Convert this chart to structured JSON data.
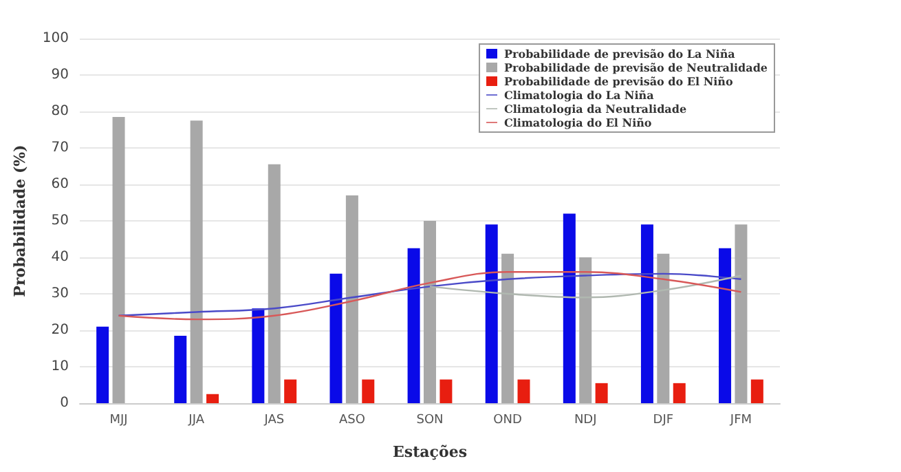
{
  "chart_data": {
    "type": "bar",
    "xlabel": "Estações",
    "ylabel": "Probabilidade (%)",
    "categories": [
      "MJJ",
      "JJA",
      "JAS",
      "ASO",
      "SON",
      "OND",
      "NDJ",
      "DJF",
      "JFM"
    ],
    "series": [
      {
        "name": "Probabilidade de previsão do La Niña",
        "color": "#0a0ae8",
        "values": [
          21,
          18.5,
          26,
          35.5,
          42.5,
          49,
          52,
          49,
          42.5
        ]
      },
      {
        "name": "Probabilidade de previsão de Neutralidade",
        "color": "#a8a8a8",
        "values": [
          78.5,
          77.5,
          65.5,
          57,
          50,
          41,
          40,
          41,
          49
        ]
      },
      {
        "name": "Probabilidade de previsão do El Niño",
        "color": "#e81e10",
        "values": [
          0,
          2.5,
          6.5,
          6.5,
          6.5,
          6.5,
          5.5,
          5.5,
          6.5
        ]
      },
      {
        "name": "Climatologia do La Niña",
        "type": "line",
        "color": "#4a4ac8",
        "values": [
          24,
          25,
          26,
          29,
          32,
          34,
          35,
          35.5,
          34
        ]
      },
      {
        "name": "Climatologia da Neutralidade",
        "type": "line",
        "color": "#b0b8b0",
        "values": [
          null,
          null,
          null,
          null,
          32,
          30,
          29,
          31,
          35
        ]
      },
      {
        "name": "Climatologia do El Niño",
        "type": "line",
        "color": "#d85858",
        "values": [
          24,
          23,
          24,
          28,
          33,
          36,
          36,
          34,
          30.5
        ]
      }
    ],
    "ylim": [
      0,
      100
    ],
    "yticks": [
      0,
      10,
      20,
      30,
      40,
      50,
      60,
      70,
      80,
      90,
      100
    ],
    "grid": "y",
    "legend": "top right",
    "marker": "none"
  }
}
